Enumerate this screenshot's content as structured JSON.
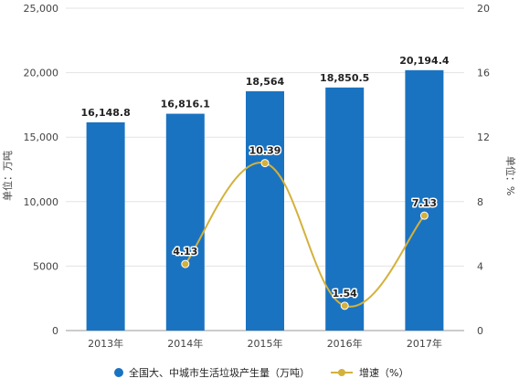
{
  "chart_data": {
    "type": "bar",
    "categories": [
      "2013年",
      "2014年",
      "2015年",
      "2016年",
      "2017年"
    ],
    "series": [
      {
        "name": "全国大、中城市生活垃圾产生量（万吨）",
        "type": "bar",
        "axis": "left",
        "values": [
          16148.8,
          16816.1,
          18564,
          18850.5,
          20194.4
        ],
        "value_labels": [
          "16,148.8",
          "16,816.1",
          "18,564",
          "18,850.5",
          "20,194.4"
        ],
        "color": "#1a73c1"
      },
      {
        "name": "增速（%）",
        "type": "line",
        "axis": "right",
        "values": [
          null,
          4.13,
          10.39,
          1.54,
          7.13
        ],
        "value_labels": [
          "",
          "4.13",
          "10.39",
          "1.54",
          "7.13"
        ],
        "color": "#d4b13b"
      }
    ],
    "ylabel": "单位：万吨",
    "y2label": "单位：%",
    "ylim": [
      0,
      25000
    ],
    "y2lim": [
      0,
      20
    ],
    "yticks": [
      "0",
      "5000",
      "10,000",
      "15,000",
      "20,000",
      "25,000"
    ],
    "y2ticks": [
      "0",
      "4",
      "8",
      "12",
      "16",
      "20"
    ],
    "grid": true,
    "legend_position": "bottom"
  }
}
